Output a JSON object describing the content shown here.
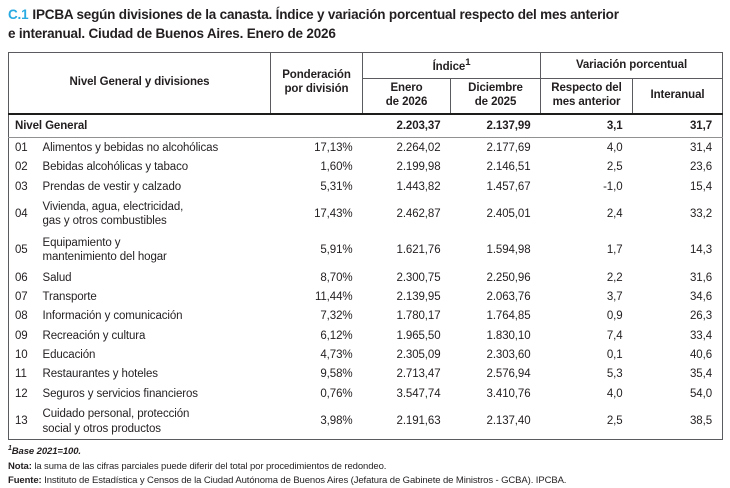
{
  "title": {
    "code": "C.1",
    "text": "IPCBA según divisiones de la canasta. Índice y variación porcentual respecto del mes anterior\ne interanual. Ciudad de Buenos Aires. Enero de 2026"
  },
  "colors": {
    "accent_blue": "#29ABE2",
    "text_ink": "#231f20"
  },
  "table": {
    "headers": {
      "col_division": "Nivel General y divisiones",
      "col_weight": "Ponderación\npor división",
      "group_index": "Índice",
      "group_index_sup": "1",
      "group_variation": "Variación porcentual",
      "col_current": "Enero\nde 2026",
      "col_previous": "Diciembre\nde 2025",
      "col_mom": "Respecto del\nmes anterior",
      "col_yoy": "Interanual"
    },
    "total_row": {
      "label": "Nivel General",
      "weight": "",
      "index_current": "2.203,37",
      "index_previous": "2.137,99",
      "var_mom": "3,1",
      "var_yoy": "31,7"
    },
    "rows": [
      {
        "code": "01",
        "name": "Alimentos y bebidas no alcohólicas",
        "weight": "17,13%",
        "index_current": "2.264,02",
        "index_previous": "2.177,69",
        "var_mom": "4,0",
        "var_yoy": "31,4"
      },
      {
        "code": "02",
        "name": "Bebidas alcohólicas y tabaco",
        "weight": "1,60%",
        "index_current": "2.199,98",
        "index_previous": "2.146,51",
        "var_mom": "2,5",
        "var_yoy": "23,6"
      },
      {
        "code": "03",
        "name": "Prendas de vestir y calzado",
        "weight": "5,31%",
        "index_current": "1.443,82",
        "index_previous": "1.457,67",
        "var_mom": "-1,0",
        "var_yoy": "15,4"
      },
      {
        "code": "04",
        "name": "Vivienda, agua, electricidad,\ngas y otros combustibles",
        "weight": "17,43%",
        "index_current": "2.462,87",
        "index_previous": "2.405,01",
        "var_mom": "2,4",
        "var_yoy": "33,2"
      },
      {
        "code": "05",
        "name": "Equipamiento y\nmantenimiento del hogar",
        "weight": "5,91%",
        "index_current": "1.621,76",
        "index_previous": "1.594,98",
        "var_mom": "1,7",
        "var_yoy": "14,3"
      },
      {
        "code": "06",
        "name": "Salud",
        "weight": "8,70%",
        "index_current": "2.300,75",
        "index_previous": "2.250,96",
        "var_mom": "2,2",
        "var_yoy": "31,6"
      },
      {
        "code": "07",
        "name": "Transporte",
        "weight": "11,44%",
        "index_current": "2.139,95",
        "index_previous": "2.063,76",
        "var_mom": "3,7",
        "var_yoy": "34,6"
      },
      {
        "code": "08",
        "name": "Información y comunicación",
        "weight": "7,32%",
        "index_current": "1.780,17",
        "index_previous": "1.764,85",
        "var_mom": "0,9",
        "var_yoy": "26,3"
      },
      {
        "code": "09",
        "name": "Recreación y cultura",
        "weight": "6,12%",
        "index_current": "1.965,50",
        "index_previous": "1.830,10",
        "var_mom": "7,4",
        "var_yoy": "33,4"
      },
      {
        "code": "10",
        "name": "Educación",
        "weight": "4,73%",
        "index_current": "2.305,09",
        "index_previous": "2.303,60",
        "var_mom": "0,1",
        "var_yoy": "40,6"
      },
      {
        "code": "11",
        "name": "Restaurantes y hoteles",
        "weight": "9,58%",
        "index_current": "2.713,47",
        "index_previous": "2.576,94",
        "var_mom": "5,3",
        "var_yoy": "35,4"
      },
      {
        "code": "12",
        "name": "Seguros y servicios financieros",
        "weight": "0,76%",
        "index_current": "3.547,74",
        "index_previous": "3.410,76",
        "var_mom": "4,0",
        "var_yoy": "54,0"
      },
      {
        "code": "13",
        "name": "Cuidado personal, protección\nsocial y otros productos",
        "weight": "3,98%",
        "index_current": "2.191,63",
        "index_previous": "2.137,40",
        "var_mom": "2,5",
        "var_yoy": "38,5"
      }
    ]
  },
  "footnotes": {
    "base_sup": "1",
    "base_text": "Base 2021=100.",
    "nota_label": "Nota:",
    "nota_text": " la suma de las cifras parciales puede diferir del total por procedimientos de redondeo.",
    "fuente_label": "Fuente:",
    "fuente_text": " Instituto de Estadística y Censos de la Ciudad Autónoma de Buenos Aires (Jefatura de Gabinete de Ministros - GCBA). IPCBA."
  }
}
